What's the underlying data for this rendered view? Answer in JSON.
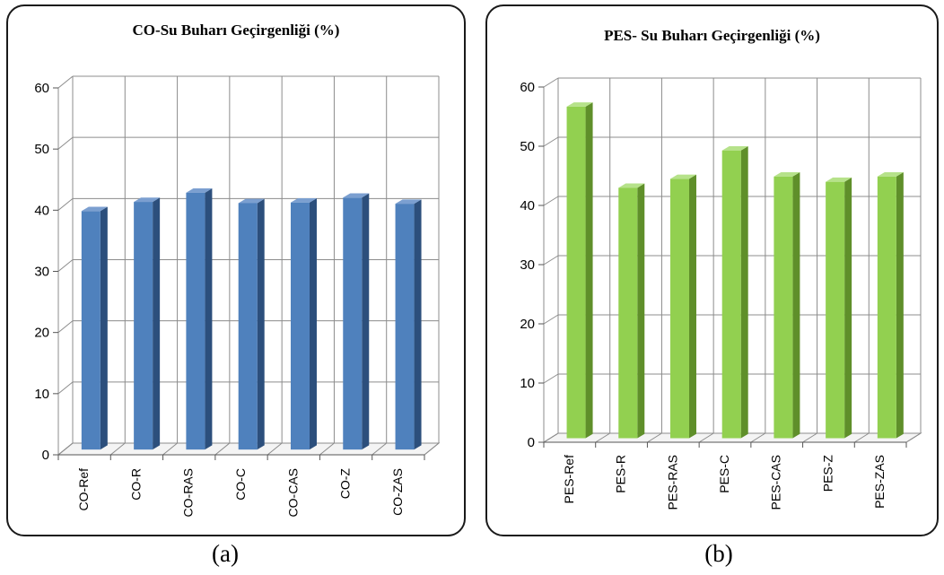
{
  "captions": {
    "a": "(a)",
    "b": "(b)"
  },
  "chart_data": [
    {
      "type": "bar",
      "title": "CO-Su Buharı Geçirgenliği (%)",
      "categories": [
        "CO-Ref",
        "CO-R",
        "CO-RAS",
        "CO-C",
        "CO-CAS",
        "CO-Z",
        "CO-ZAS"
      ],
      "values": [
        39,
        40.5,
        42,
        40.3,
        40.4,
        41.2,
        40.2
      ],
      "ylim": [
        0,
        60
      ],
      "yticks": [
        0,
        10,
        20,
        30,
        40,
        50,
        60
      ],
      "grid": true,
      "legend": "none",
      "colors": {
        "front": "#4f81bd",
        "side": "#2c4f7c",
        "top": "#7b9fd0"
      }
    },
    {
      "type": "bar",
      "title": "PES- Su Buharı  Geçirgenliği (%)",
      "categories": [
        "PES-Ref",
        "PES-R",
        "PES-RAS",
        "PES-C",
        "PES-CAS",
        "PES-Z",
        "PES-ZAS"
      ],
      "values": [
        56,
        42.3,
        43.8,
        48.6,
        44.2,
        43.3,
        44.2
      ],
      "ylim": [
        0,
        60
      ],
      "yticks": [
        0,
        10,
        20,
        30,
        40,
        50,
        60
      ],
      "grid": true,
      "legend": "none",
      "colors": {
        "front": "#92d050",
        "side": "#5f8f2a",
        "top": "#b6e28a"
      }
    }
  ]
}
